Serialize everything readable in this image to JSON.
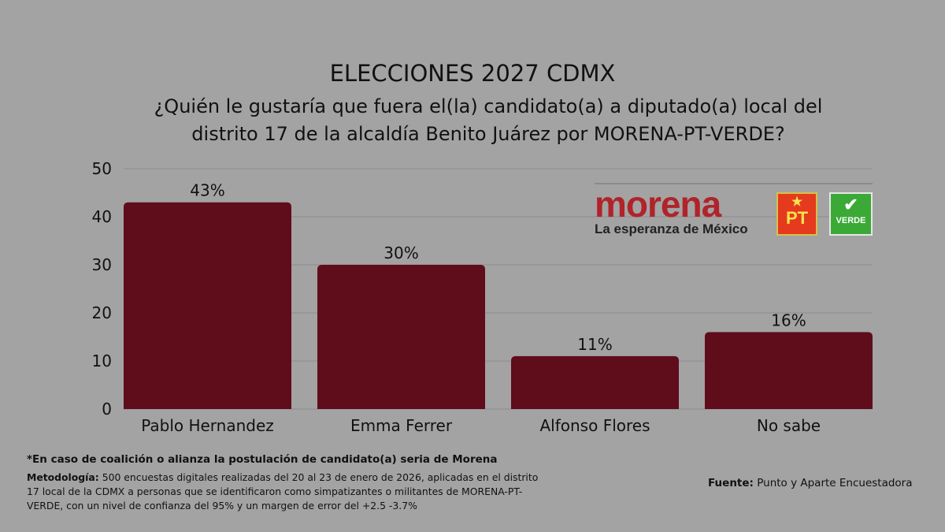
{
  "header": {
    "title": "ELECCIONES 2027 CDMX",
    "subtitle": "¿Quién le gustaría que fuera el(la) candidato(a) a diputado(a) local del distrito 17 de la alcaldía Benito Juárez por MORENA-PT-VERDE?"
  },
  "chart_data": {
    "type": "bar",
    "categories": [
      "Pablo Hernandez",
      "Emma Ferrer",
      "Alfonso Flores",
      "No sabe"
    ],
    "values": [
      43,
      30,
      11,
      16
    ],
    "value_labels": [
      "43%",
      "30%",
      "11%",
      "16%"
    ],
    "ylim": [
      0,
      50
    ],
    "yticks": [
      0,
      10,
      20,
      30,
      40,
      50
    ],
    "grid": true,
    "bar_color": "#5f0c1b",
    "grid_color": "#8e8e8e"
  },
  "logos": {
    "morena_word": "morena",
    "morena_tagline": "La esperanza de México",
    "pt": "PT",
    "verde": "VERDE"
  },
  "footer": {
    "note": "*En caso de coalición o alianza la postulación de candidato(a) seria de Morena",
    "methodology_label": "Metodología:",
    "methodology_text": " 500 encuestas digitales realizadas del 20 al 23 de enero de 2026, aplicadas en el distrito 17 local de la CDMX a personas que se identificaron como simpatizantes o militantes de MORENA-PT-VERDE, con un nivel de confianza del 95% y un margen de error del +2.5 -3.7%",
    "source_label": "Fuente:",
    "source_text": " Punto y Aparte Encuestadora"
  },
  "colors": {
    "background": "#a3a3a3",
    "bar": "#5f0c1b",
    "morena_red": "#b0232a",
    "pt_red": "#e53a1e",
    "verde_green": "#3aa935"
  }
}
